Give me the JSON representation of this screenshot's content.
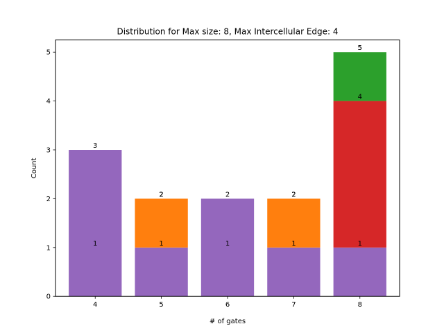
{
  "chart_data": {
    "type": "bar",
    "stacked": true,
    "title": "Distribution for Max size: 8, Max Intercellular Edge: 4",
    "xlabel": "# of gates",
    "ylabel": "Count",
    "categories": [
      "4",
      "5",
      "6",
      "7",
      "8"
    ],
    "ylim": [
      0,
      5.25
    ],
    "yticks": [
      0,
      1,
      2,
      3,
      4,
      5
    ],
    "grid": false,
    "legend": "none",
    "series": [
      {
        "color": "#9467bd",
        "values": [
          3,
          1,
          2,
          1,
          1
        ]
      },
      {
        "color": "#ff7f0e",
        "values": [
          0,
          1,
          0,
          1,
          0
        ]
      },
      {
        "color": "#d62728",
        "values": [
          0,
          0,
          0,
          0,
          3
        ]
      },
      {
        "color": "#2ca02c",
        "values": [
          0,
          0,
          0,
          0,
          1
        ]
      }
    ],
    "annotations": [
      {
        "category": "4",
        "y": 3,
        "text": "3"
      },
      {
        "category": "4",
        "y": 1,
        "text": "1"
      },
      {
        "category": "5",
        "y": 2,
        "text": "2"
      },
      {
        "category": "5",
        "y": 2,
        "text": "2"
      },
      {
        "category": "5",
        "y": 1,
        "text": "1"
      },
      {
        "category": "6",
        "y": 2,
        "text": "2"
      },
      {
        "category": "6",
        "y": 1,
        "text": "1"
      },
      {
        "category": "7",
        "y": 2,
        "text": "2"
      },
      {
        "category": "7",
        "y": 2,
        "text": "2"
      },
      {
        "category": "7",
        "y": 1,
        "text": "1"
      },
      {
        "category": "8",
        "y": 5,
        "text": "5"
      },
      {
        "category": "8",
        "y": 5,
        "text": "5"
      },
      {
        "category": "8",
        "y": 4,
        "text": "4"
      },
      {
        "category": "8",
        "y": 1,
        "text": "1"
      }
    ]
  }
}
